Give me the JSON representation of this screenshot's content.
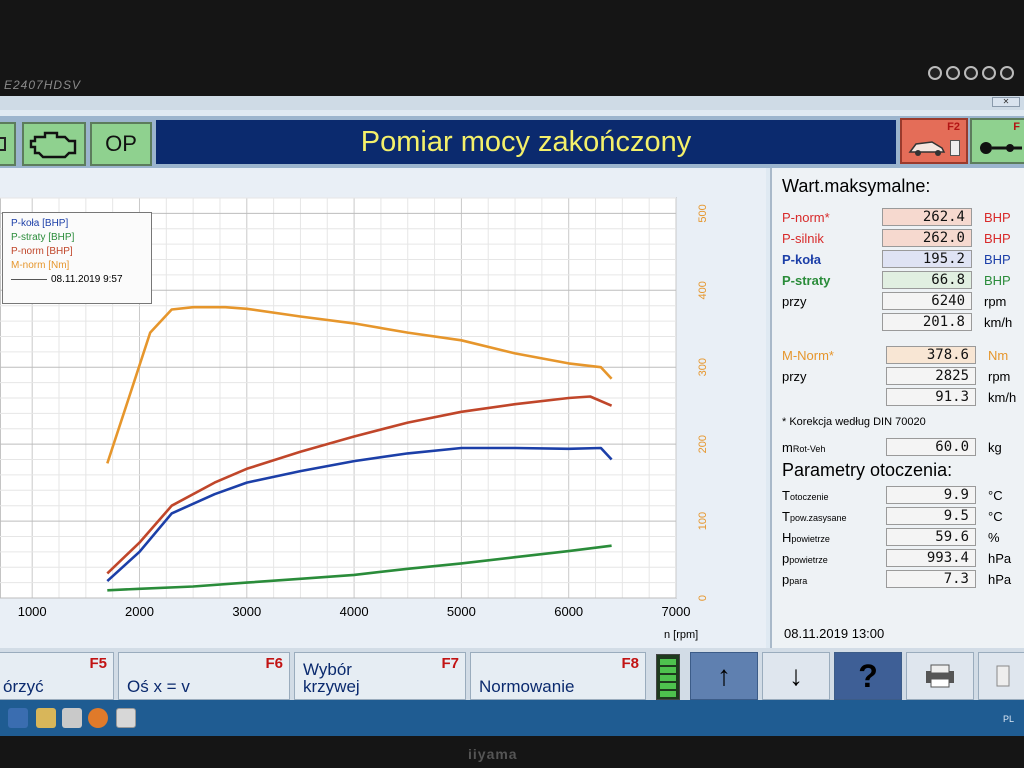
{
  "monitor": {
    "model": "E2407HDSV",
    "brand": "iiyama"
  },
  "toolbar": {
    "op_label": "OP",
    "title": "Pomiar mocy zakończony",
    "f2_key": "F2",
    "f3_key": "F"
  },
  "legend": {
    "items": [
      "P-koła [BHP]",
      "P-straty [BHP]",
      "P-norm [BHP]",
      "M-norm [Nm]"
    ],
    "timestamp": "08.11.2019 9:57"
  },
  "chart_data": {
    "type": "line",
    "xlabel": "n [rpm]",
    "x_ticks": [
      "1000",
      "2000",
      "3000",
      "4000",
      "5000",
      "6000",
      "7000"
    ],
    "xlim": [
      700,
      7000
    ],
    "right_axis_ticks": [
      "0",
      "100",
      "200",
      "300",
      "400",
      "500"
    ],
    "ylim_right": [
      0,
      520
    ],
    "series": [
      {
        "name": "P-koła [BHP]",
        "color": "#1c3fa8",
        "x": [
          1700,
          2000,
          2300,
          2700,
          3000,
          3500,
          4000,
          4500,
          5000,
          5500,
          6000,
          6300,
          6400
        ],
        "y": [
          22,
          60,
          110,
          135,
          150,
          165,
          178,
          188,
          195,
          195,
          194,
          195,
          180
        ]
      },
      {
        "name": "P-straty [BHP]",
        "color": "#2a8c3a",
        "x": [
          1700,
          2000,
          2500,
          3000,
          3500,
          4000,
          4500,
          5000,
          5500,
          6000,
          6400
        ],
        "y": [
          10,
          12,
          15,
          20,
          25,
          30,
          38,
          45,
          53,
          61,
          68
        ]
      },
      {
        "name": "P-norm [BHP]",
        "color": "#c0462a",
        "x": [
          1700,
          2000,
          2300,
          2700,
          3000,
          3500,
          4000,
          4500,
          5000,
          5500,
          6000,
          6200,
          6400
        ],
        "y": [
          32,
          72,
          120,
          150,
          168,
          190,
          210,
          228,
          242,
          252,
          260,
          262,
          250
        ]
      },
      {
        "name": "M-norm [Nm]",
        "color": "#e6962c",
        "x": [
          1700,
          1900,
          2100,
          2300,
          2500,
          2800,
          3000,
          3500,
          4000,
          4500,
          5000,
          5500,
          6000,
          6300,
          6400
        ],
        "y": [
          175,
          260,
          345,
          375,
          378,
          378,
          376,
          366,
          357,
          345,
          335,
          318,
          305,
          300,
          285
        ]
      }
    ]
  },
  "maxima": {
    "title": "Wart.maksymalne:",
    "p_norm": {
      "label": "P-norm*",
      "value": "262.4",
      "unit": "BHP"
    },
    "p_silnik": {
      "label": "P-silnik",
      "value": "262.0",
      "unit": "BHP"
    },
    "p_kola": {
      "label": "P-koła",
      "value": "195.2",
      "unit": "BHP"
    },
    "p_straty": {
      "label": "P-straty",
      "value": "66.8",
      "unit": "BHP"
    },
    "przy_rpm": {
      "label": "przy",
      "value": "6240",
      "unit": "rpm"
    },
    "przy_kmh": {
      "value": "201.8",
      "unit": "km/h"
    },
    "m_norm": {
      "label": "M-Norm*",
      "value": "378.6",
      "unit": "Nm"
    },
    "m_przy_rpm": {
      "label": "przy",
      "value": "2825",
      "unit": "rpm"
    },
    "m_przy_kmh": {
      "value": "91.3",
      "unit": "km/h"
    },
    "correction": "* Korekcja według DIN 70020",
    "m_rot": {
      "label": "m",
      "sub": "Rot-Veh",
      "value": "60.0",
      "unit": "kg"
    }
  },
  "ambient": {
    "title": "Parametry otoczenia:",
    "rows": [
      {
        "label": "T",
        "sub": "otoczenie",
        "value": "9.9",
        "unit": "°C"
      },
      {
        "label": "T",
        "sub": "pow.zasysane",
        "value": "9.5",
        "unit": "°C"
      },
      {
        "label": "H",
        "sub": "powietrze",
        "value": "59.6",
        "unit": "%"
      },
      {
        "label": "p",
        "sub": "powietrze",
        "value": "993.4",
        "unit": "hPa"
      },
      {
        "label": "p",
        "sub": "para",
        "value": "7.3",
        "unit": "hPa"
      }
    ]
  },
  "status_datetime": "08.11.2019   13:00",
  "fbar": {
    "f5": {
      "key": "F5",
      "label": "órzyć"
    },
    "f6": {
      "key": "F6",
      "label": "Oś x = v"
    },
    "f7": {
      "key": "F7",
      "label": "Wybór krzywej"
    },
    "f8": {
      "key": "F8",
      "label": "Normowanie"
    },
    "help": "?"
  },
  "tray": {
    "lang": "PL"
  }
}
